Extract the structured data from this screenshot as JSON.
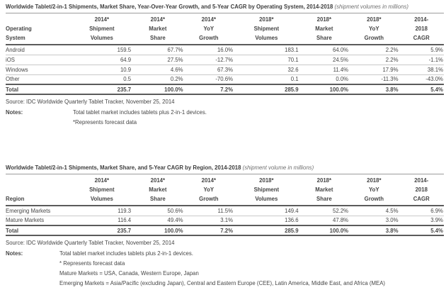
{
  "t1": {
    "title": "Worldwide Tablet/2-in-1 Shipments, Market Share, Year-Over-Year Growth, and 5-Year CAGR by Operating System, 2014-2018",
    "title_suffix": "(shipment volumes in millions)",
    "row_header_lines": [
      "Operating",
      "System"
    ],
    "columns": [
      [
        "2014*",
        "Shipment",
        "Volumes"
      ],
      [
        "2014*",
        "Market",
        "Share"
      ],
      [
        "2014*",
        "YoY",
        "Growth"
      ],
      [
        "2018*",
        "Shipment",
        "Volumes"
      ],
      [
        "2018*",
        "Market",
        "Share"
      ],
      [
        "2018*",
        "YoY",
        "Growth"
      ],
      [
        "2014-",
        "2018",
        "CAGR"
      ]
    ],
    "rows": [
      [
        "Android",
        "159.5",
        "67.7%",
        "16.0%",
        "183.1",
        "64.0%",
        "2.2%",
        "5.9%"
      ],
      [
        "iOS",
        "64.9",
        "27.5%",
        "-12.7%",
        "70.1",
        "24.5%",
        "2.2%",
        "-1.1%"
      ],
      [
        "Windows",
        "10.9",
        "4.6%",
        "67.3%",
        "32.6",
        "11.4%",
        "17.9%",
        "38.1%"
      ],
      [
        "Other",
        "0.5",
        "0.2%",
        "-70.6%",
        "0.1",
        "0.0%",
        "-11.3%",
        "-43.0%"
      ]
    ],
    "total": [
      "Total",
      "235.7",
      "100.0%",
      "7.2%",
      "285.9",
      "100.0%",
      "3.8%",
      "5.4%"
    ],
    "source": "Source: IDC Worldwide Quarterly Tablet Tracker, November 25, 2014",
    "notes_label": "Notes:",
    "notes": [
      "Total tablet market includes tablets plus 2-in-1 devices.",
      "*Represents forecast data"
    ]
  },
  "t2": {
    "title": "Worldwide Tablet/2-in-1 Shipments, Market Share, and 5-Year CAGR by Region, 2014-2018",
    "title_suffix": "(shipment volume in millions)",
    "row_header_lines": [
      "Region"
    ],
    "columns": [
      [
        "2014*",
        "Shipment",
        "Volumes"
      ],
      [
        "2014*",
        "Market",
        "Share"
      ],
      [
        "2014*",
        "YoY",
        "Growth"
      ],
      [
        "2018*",
        "Shipment",
        "Volumes"
      ],
      [
        "2018*",
        "Market",
        "Share"
      ],
      [
        "2018*",
        "YoY",
        "Growth"
      ],
      [
        "2014-",
        "2018",
        "CAGR"
      ]
    ],
    "rows": [
      [
        "Emerging Markets",
        "119.3",
        "50.6%",
        "11.5%",
        "149.4",
        "52.2%",
        "4.5%",
        "6.9%"
      ],
      [
        "Mature Markets",
        "116.4",
        "49.4%",
        "3.1%",
        "136.6",
        "47.8%",
        "3.0%",
        "3.9%"
      ]
    ],
    "total": [
      "Total",
      "235.7",
      "100.0%",
      "7.2%",
      "285.9",
      "100.0%",
      "3.8%",
      "5.4%"
    ],
    "source": "Source: IDC Worldwide Quarterly Tablet Tracker, November 25, 2014",
    "notes_label": "Notes:",
    "notes": [
      "Total tablet market includes tablets plus 2-in-1 devices.",
      "* Represents forecast data",
      "Mature Markets = USA, Canada, Western Europe, Japan",
      "Emerging Markets = Asia/Pacific (excluding Japan), Central and Eastern Europe (CEE), Latin America, Middle East, and Africa (MEA)"
    ]
  }
}
